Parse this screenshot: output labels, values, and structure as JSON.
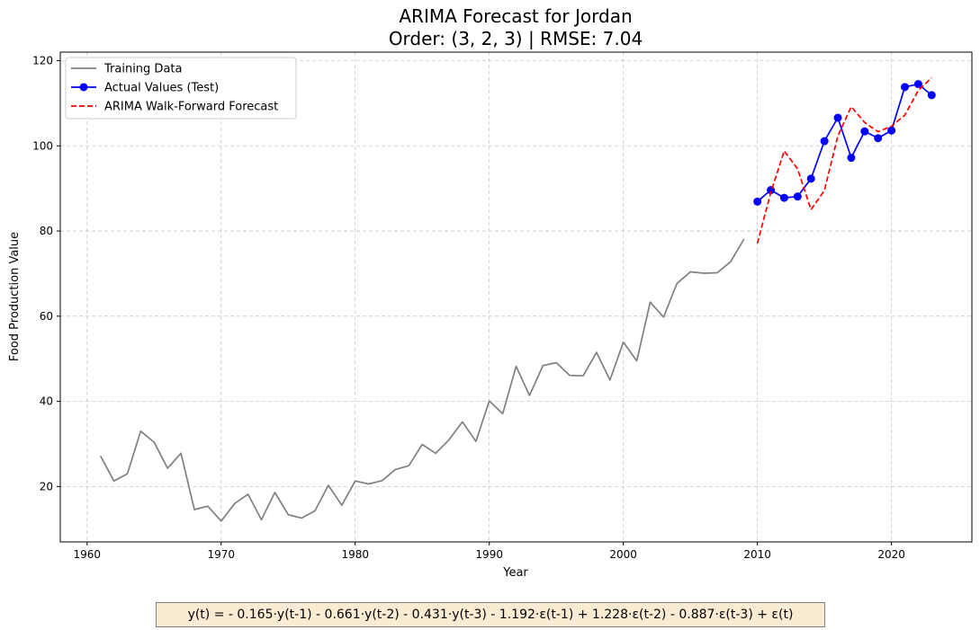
{
  "chart_data": {
    "type": "line",
    "title": "ARIMA Forecast for Jordan",
    "subtitle": "Order: (3, 2, 3) | RMSE: 7.04",
    "xlabel": "Year",
    "ylabel": "Food Production Value",
    "xlim": [
      1958,
      2026
    ],
    "ylim": [
      7,
      122
    ],
    "x_ticks": [
      1960,
      1970,
      1980,
      1990,
      2000,
      2010,
      2020
    ],
    "y_ticks": [
      20,
      40,
      60,
      80,
      100,
      120
    ],
    "grid": true,
    "legend_position": "top-left",
    "series": [
      {
        "name": "Training Data",
        "color": "#808080",
        "style": "solid",
        "x": [
          1961,
          1962,
          1963,
          1964,
          1965,
          1966,
          1967,
          1968,
          1969,
          1970,
          1971,
          1972,
          1973,
          1974,
          1975,
          1976,
          1977,
          1978,
          1979,
          1980,
          1981,
          1982,
          1983,
          1984,
          1985,
          1986,
          1987,
          1988,
          1989,
          1990,
          1991,
          1992,
          1993,
          1994,
          1995,
          1996,
          1997,
          1998,
          1999,
          2000,
          2001,
          2002,
          2003,
          2004,
          2005,
          2006,
          2007,
          2008,
          2009
        ],
        "values": [
          27.2,
          21.3,
          23.0,
          33.0,
          30.4,
          24.3,
          27.8,
          14.6,
          15.4,
          11.9,
          16.0,
          18.2,
          12.2,
          18.6,
          13.4,
          12.6,
          14.3,
          20.3,
          15.6,
          21.3,
          20.6,
          21.4,
          24.0,
          24.9,
          29.9,
          27.8,
          31.0,
          35.2,
          30.6,
          40.1,
          37.1,
          48.2,
          41.4,
          48.4,
          49.1,
          46.1,
          46.0,
          51.5,
          45.0,
          53.9,
          49.5,
          63.3,
          59.8,
          67.7,
          70.4,
          70.1,
          70.2,
          72.8,
          78.1
        ]
      },
      {
        "name": "Actual Values (Test)",
        "color": "#0000ff",
        "style": "solid-markers",
        "x": [
          2010,
          2011,
          2012,
          2013,
          2014,
          2015,
          2016,
          2017,
          2018,
          2019,
          2020,
          2021,
          2022,
          2023
        ],
        "values": [
          86.9,
          89.6,
          87.8,
          88.1,
          92.3,
          101.1,
          106.6,
          97.2,
          103.4,
          101.8,
          103.6,
          113.8,
          114.5,
          111.9
        ]
      },
      {
        "name": "ARIMA Walk-Forward Forecast",
        "color": "#ff0000",
        "style": "dashed",
        "x": [
          2010,
          2011,
          2012,
          2013,
          2014,
          2015,
          2016,
          2017,
          2018,
          2019,
          2020,
          2021,
          2022,
          2023
        ],
        "values": [
          77.1,
          89.0,
          98.8,
          94.6,
          85.0,
          89.5,
          102.3,
          109.2,
          105.5,
          103.3,
          104.6,
          107.2,
          113.0,
          116.0
        ]
      }
    ]
  },
  "equation": "y(t) = - 0.165·y(t-1) - 0.661·y(t-2) - 0.431·y(t-3) - 1.192·ε(t-1) + 1.228·ε(t-2) - 0.887·ε(t-3) + ε(t)"
}
